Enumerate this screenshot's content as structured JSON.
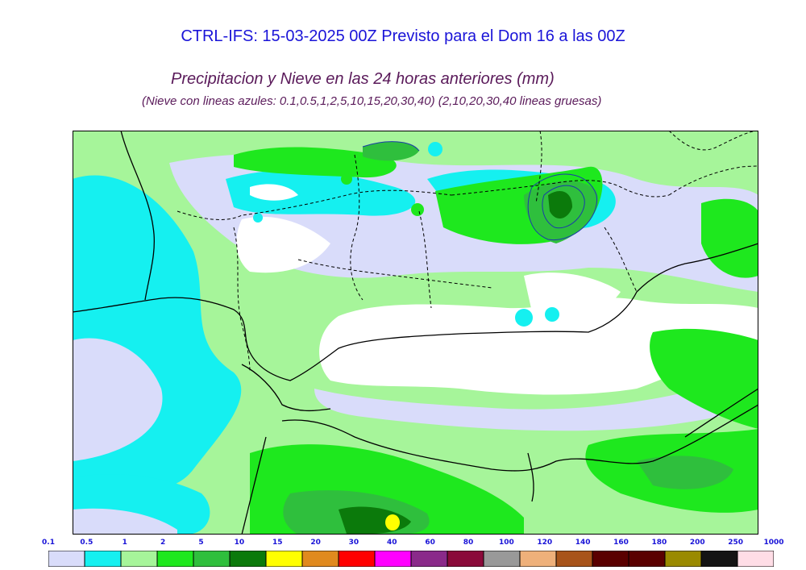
{
  "title": "CTRL-IFS: 15-03-2025 00Z Previsto para el Dom 16 a las 00Z",
  "subtitle": "Precipitacion y Nieve en las 24 horas anteriores (mm)",
  "note": "(Nieve con lineas azules: 0.1,0.5,1,2,5,10,15,20,30,40)  (2,10,20,30,40 lineas gruesas)",
  "legend": {
    "labels": [
      "0.1",
      "0.5",
      "1",
      "2",
      "5",
      "10",
      "15",
      "20",
      "30",
      "40",
      "60",
      "80",
      "100",
      "120",
      "140",
      "160",
      "180",
      "200",
      "250",
      "1000"
    ],
    "colors": [
      "#d9dcfa",
      "#15f0f0",
      "#a6f59a",
      "#1ee81e",
      "#2fbf3d",
      "#0b7a0b",
      "#ffff00",
      "#e08a1e",
      "#ff0000",
      "#ff00ff",
      "#8a2a8a",
      "#8a0a3a",
      "#999999",
      "#eeb07a",
      "#a8541a",
      "#5a0000",
      "#5a0000",
      "#9a8a00",
      "#141414",
      "#ffdde6"
    ]
  },
  "map": {
    "colors": {
      "background": "#ffffff",
      "very_light": "#d9dcfa",
      "cyan": "#15f0f0",
      "light_green": "#a6f59a",
      "green": "#1ee81e",
      "mid_green": "#2fbf3d",
      "dark_green": "#0b7a0b",
      "yellow": "#ffff00",
      "border": "#000000"
    }
  }
}
